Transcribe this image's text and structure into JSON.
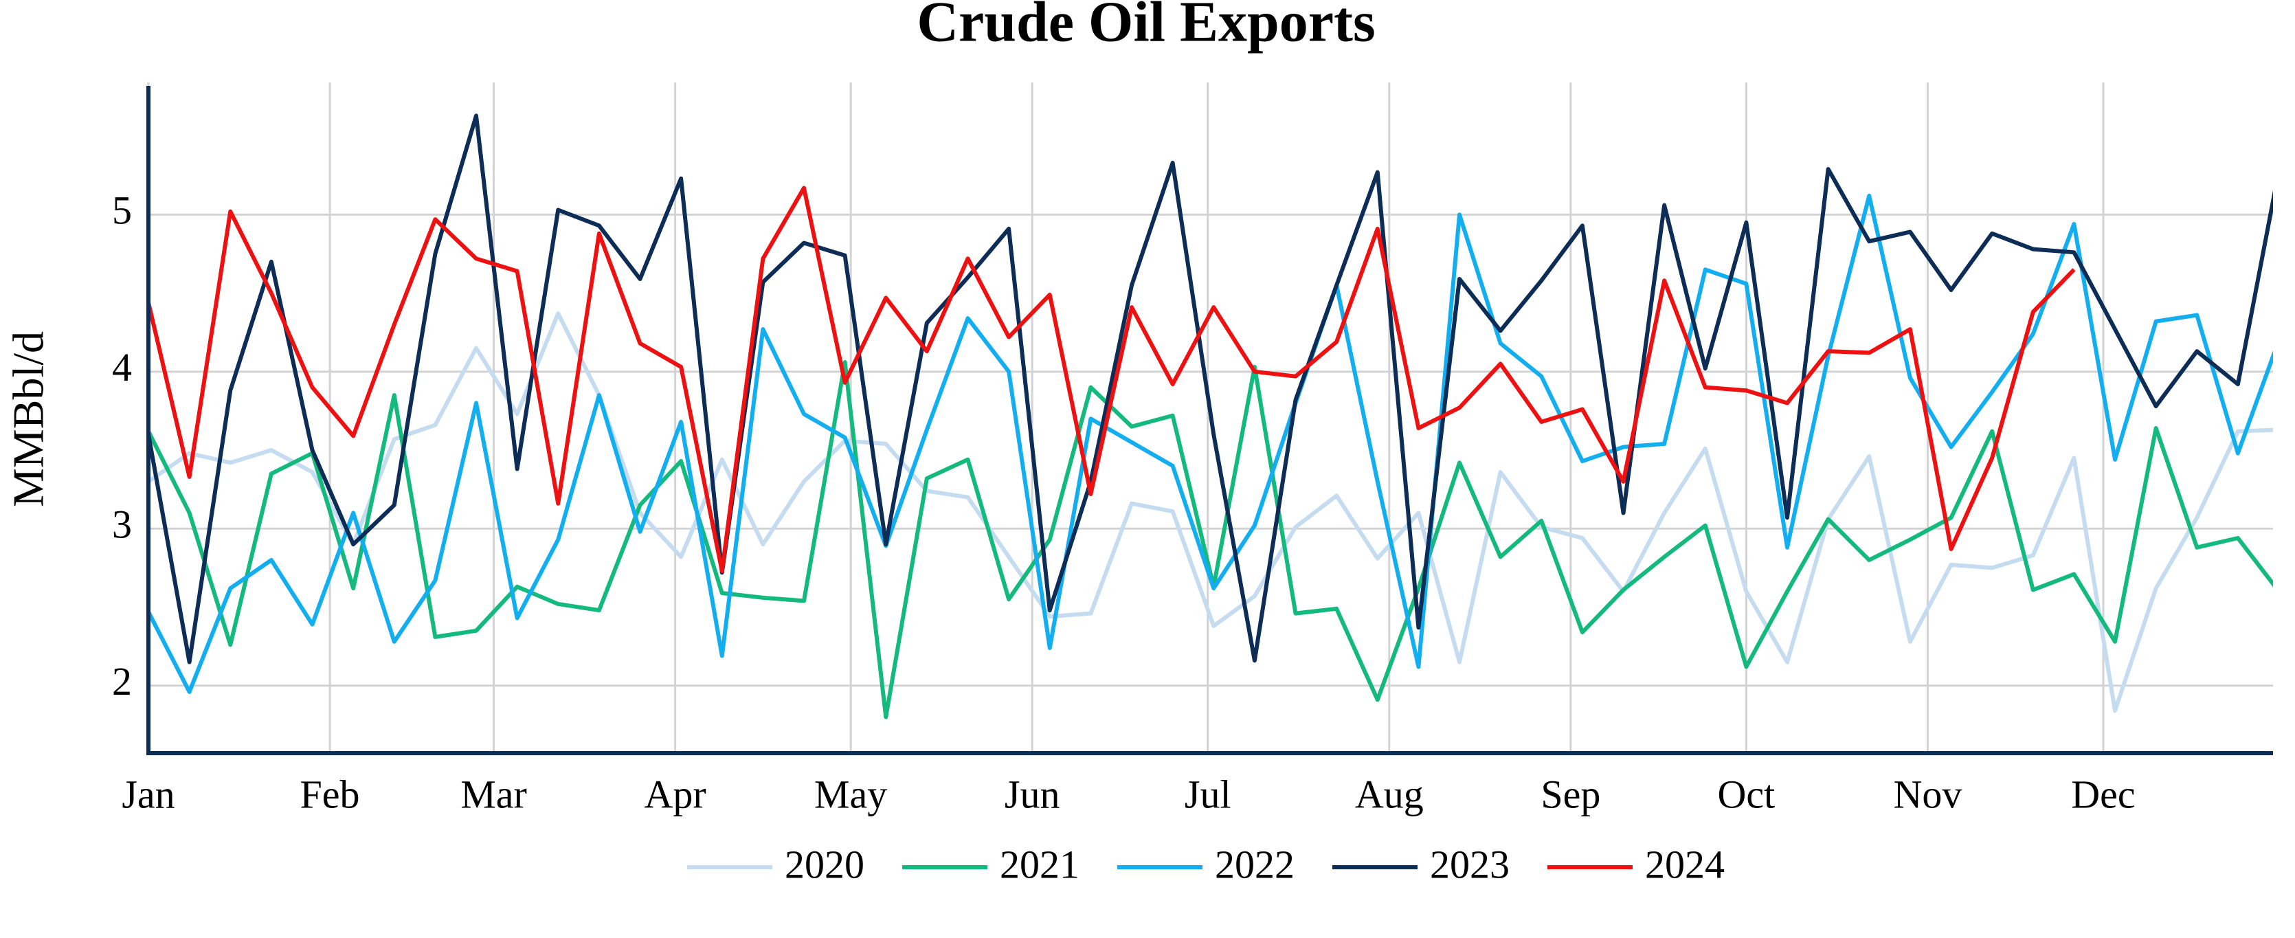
{
  "chart_data": {
    "type": "line",
    "title": "Crude Oil Exports",
    "y_label": "MMBbl/d",
    "x": [
      0,
      7,
      14,
      21,
      28,
      35,
      42,
      49,
      56,
      63,
      70,
      77,
      84,
      91,
      98,
      105,
      112,
      119,
      126,
      133,
      140,
      147,
      154,
      161,
      168,
      175,
      182,
      189,
      196,
      203,
      210,
      217,
      224,
      231,
      238,
      245,
      252,
      259,
      266,
      273,
      280,
      287,
      294,
      301,
      308,
      315,
      322,
      329,
      336,
      343,
      350,
      357,
      364
    ],
    "xlim": [
      0,
      363
    ],
    "xticks": [
      {
        "value": 0,
        "label": "Jan"
      },
      {
        "value": 31,
        "label": "Feb"
      },
      {
        "value": 59,
        "label": "Mar"
      },
      {
        "value": 90,
        "label": "Apr"
      },
      {
        "value": 120,
        "label": "May"
      },
      {
        "value": 151,
        "label": "Jun"
      },
      {
        "value": 181,
        "label": "Jul"
      },
      {
        "value": 212,
        "label": "Aug"
      },
      {
        "value": 243,
        "label": "Sep"
      },
      {
        "value": 273,
        "label": "Oct"
      },
      {
        "value": 304,
        "label": "Nov"
      },
      {
        "value": 334,
        "label": "Dec"
      }
    ],
    "ylim": [
      1.57,
      5.82
    ],
    "yticks": [
      2,
      3,
      4,
      5
    ],
    "grid": true,
    "legend": "bottom",
    "series": [
      {
        "name": "2020",
        "color": "#c5dcf0",
        "values": [
          3.3,
          3.48,
          3.42,
          3.5,
          3.36,
          2.9,
          3.57,
          3.66,
          4.15,
          3.73,
          4.37,
          3.85,
          3.1,
          2.82,
          3.44,
          2.9,
          3.3,
          3.56,
          3.54,
          3.24,
          3.2,
          2.82,
          2.44,
          2.46,
          3.16,
          3.11,
          2.38,
          2.57,
          3.01,
          3.21,
          2.81,
          3.1,
          2.15,
          3.36,
          3.01,
          2.94,
          2.6,
          3.1,
          3.51,
          2.6,
          2.15,
          3.06,
          3.46,
          2.28,
          2.77,
          2.75,
          2.83,
          3.45,
          1.84,
          2.62,
          3.07,
          3.62,
          3.63
        ]
      },
      {
        "name": "2021",
        "color": "#14b97e",
        "values": [
          3.62,
          3.1,
          2.26,
          3.35,
          3.48,
          2.62,
          3.85,
          2.31,
          2.35,
          2.63,
          2.52,
          2.48,
          3.15,
          3.43,
          2.59,
          2.56,
          2.54,
          4.06,
          1.8,
          3.32,
          3.44,
          2.55,
          2.93,
          3.9,
          3.65,
          3.72,
          2.63,
          4.03,
          2.46,
          2.49,
          1.91,
          2.62,
          3.42,
          2.82,
          3.05,
          2.34,
          2.61,
          2.82,
          3.02,
          2.12,
          2.6,
          3.06,
          2.8,
          2.93,
          3.07,
          3.62,
          2.61,
          2.71,
          2.28,
          3.64,
          2.88,
          2.94,
          2.6
        ]
      },
      {
        "name": "2022",
        "color": "#12aef0",
        "values": [
          2.47,
          1.96,
          2.62,
          2.8,
          2.39,
          3.1,
          2.28,
          2.67,
          3.8,
          2.43,
          2.93,
          3.85,
          2.98,
          3.68,
          2.19,
          4.27,
          3.73,
          3.58,
          2.89,
          3.63,
          4.34,
          4.0,
          2.24,
          3.7,
          3.55,
          3.4,
          2.62,
          3.02,
          3.8,
          4.55,
          3.3,
          2.12,
          5.0,
          4.18,
          3.97,
          3.43,
          3.52,
          3.54,
          4.65,
          4.56,
          2.88,
          4.1,
          5.12,
          3.96,
          3.52,
          3.87,
          4.24,
          4.94,
          3.44,
          4.32,
          4.36,
          3.48,
          4.2
        ]
      },
      {
        "name": "2023",
        "color": "#0d2d57",
        "values": [
          3.6,
          2.15,
          3.88,
          4.7,
          3.5,
          2.9,
          3.15,
          4.75,
          5.63,
          3.38,
          5.03,
          4.93,
          4.59,
          5.23,
          2.72,
          4.57,
          4.82,
          4.74,
          2.9,
          4.31,
          4.6,
          4.91,
          2.48,
          3.3,
          4.55,
          5.33,
          3.6,
          2.16,
          3.82,
          4.55,
          5.27,
          2.37,
          4.59,
          4.26,
          4.58,
          4.93,
          3.1,
          5.06,
          4.02,
          4.95,
          3.07,
          5.29,
          4.83,
          4.89,
          4.52,
          4.88,
          4.78,
          4.76,
          4.27,
          3.78,
          4.13,
          3.92,
          5.28
        ]
      },
      {
        "name": "2024",
        "color": "#ee1111",
        "values": [
          4.44,
          3.33,
          5.02,
          4.5,
          3.9,
          3.59,
          4.3,
          4.97,
          4.72,
          4.64,
          3.16,
          4.88,
          4.18,
          4.03,
          2.73,
          4.72,
          5.17,
          3.93,
          4.47,
          4.13,
          4.72,
          4.22,
          4.49,
          3.22,
          4.41,
          3.92,
          4.41,
          4.0,
          3.97,
          4.19,
          4.91,
          3.64,
          3.77,
          4.05,
          3.68,
          3.76,
          3.3,
          4.58,
          3.9,
          3.88,
          3.8,
          4.13,
          4.12,
          4.27,
          2.87,
          3.45,
          4.38,
          4.65,
          null,
          null,
          null,
          null,
          null
        ]
      }
    ]
  }
}
